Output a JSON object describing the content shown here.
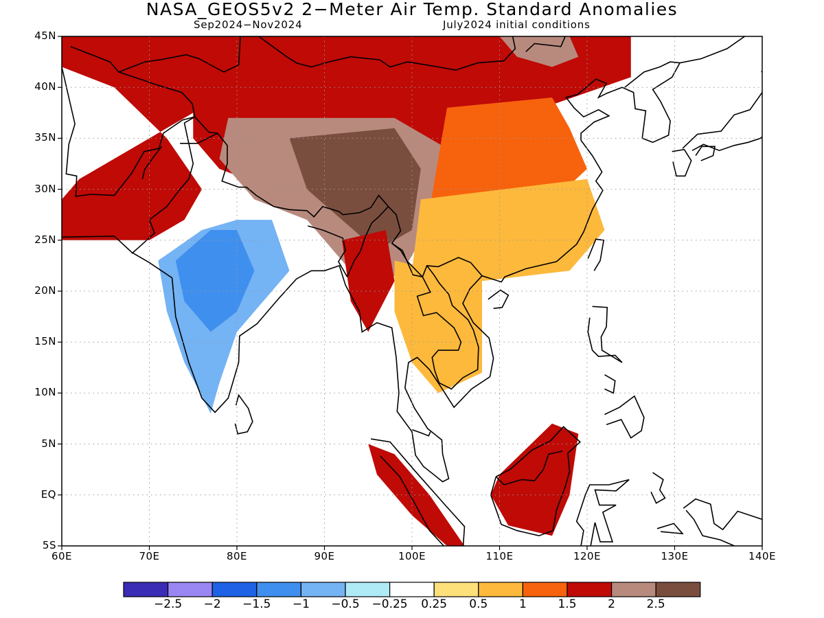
{
  "title": "NASA_GEOS5v2 2−Meter Air Temp. Standard Anomalies",
  "subtitle_left": "Sep2024−Nov2024",
  "subtitle_right": "July2024 initial conditions",
  "map": {
    "lon_range": [
      60,
      140
    ],
    "lat_range": [
      -5,
      45
    ],
    "lat_labels": [
      "45N",
      "40N",
      "35N",
      "30N",
      "25N",
      "20N",
      "15N",
      "10N",
      "5N",
      "EQ",
      "5S"
    ],
    "lat_values": [
      45,
      40,
      35,
      30,
      25,
      20,
      15,
      10,
      5,
      0,
      -5
    ],
    "lon_labels": [
      "60E",
      "70E",
      "80E",
      "90E",
      "100E",
      "110E",
      "120E",
      "130E",
      "140E"
    ],
    "lon_values": [
      60,
      70,
      80,
      90,
      100,
      110,
      120,
      130,
      140
    ],
    "grid": "dotted",
    "anomaly_regions": [
      {
        "name": "northwest",
        "level": 1.5
      },
      {
        "name": "central-asia",
        "level": 1.5
      },
      {
        "name": "mongolia",
        "level": 1.5
      },
      {
        "name": "mongolia-north",
        "level": 2
      },
      {
        "name": "tibet",
        "level": 2
      },
      {
        "name": "tibet-core",
        "level": 2.5
      },
      {
        "name": "east-china",
        "level": 1
      },
      {
        "name": "south-china",
        "level": 0.5
      },
      {
        "name": "india",
        "level": -1
      },
      {
        "name": "india-core",
        "level": -1.5
      },
      {
        "name": "burma",
        "level": 1.5
      },
      {
        "name": "indochina",
        "level": 0.5
      },
      {
        "name": "borneo",
        "level": 1.5
      },
      {
        "name": "sumatra",
        "level": 1.5
      }
    ]
  },
  "colorbar": {
    "colors": [
      "#3a2cb5",
      "#9a86f2",
      "#1f62e6",
      "#3f8fee",
      "#74b3f4",
      "#aeebf7",
      "#ffffff",
      "#fde07a",
      "#fdb93c",
      "#f7620d",
      "#bf0a06",
      "#b88a7e",
      "#7a4e3f"
    ],
    "labels": [
      "−2.5",
      "−2",
      "−1.5",
      "−1",
      "−0.5",
      "−0.25",
      "0.25",
      "0.5",
      "1",
      "1.5",
      "2",
      "2.5"
    ]
  }
}
